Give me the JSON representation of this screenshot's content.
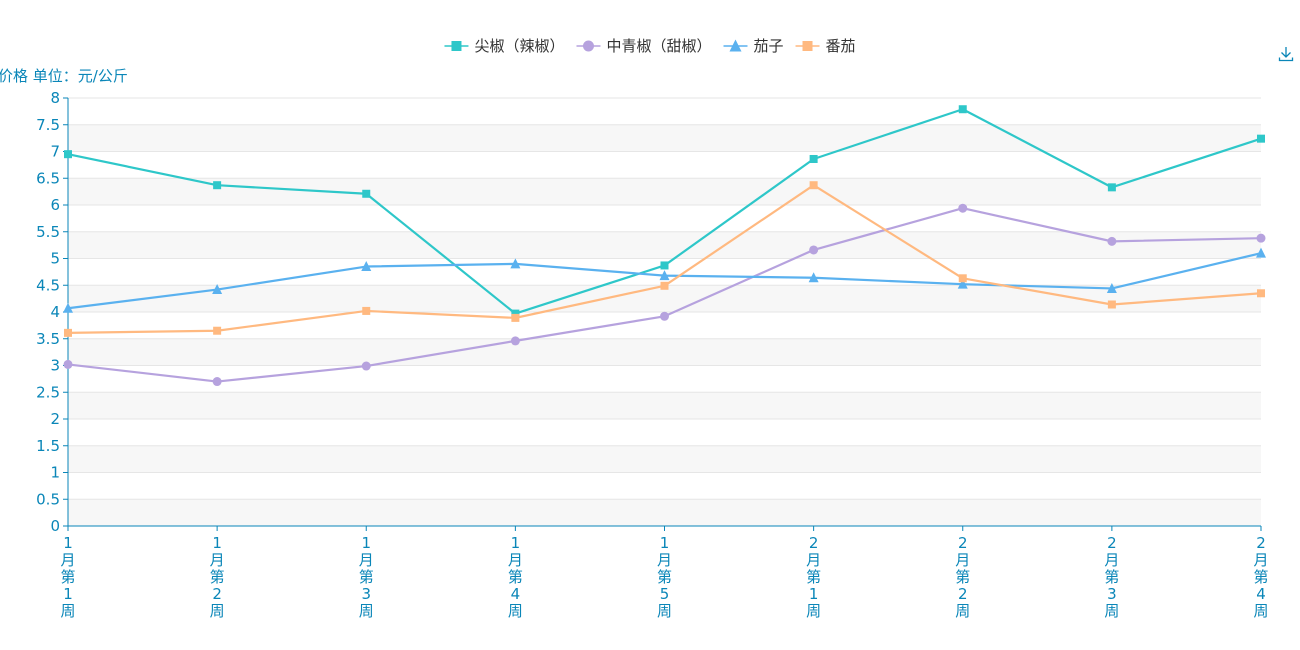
{
  "toolbar": {
    "download_icon": "download-icon"
  },
  "colors": {
    "axis": "#0a86b8",
    "gridline": "#e6e6e6",
    "band": "#f7f7f7",
    "legend_text": "#333333"
  },
  "chart_data": {
    "type": "line",
    "ylabel": "价格 单位：元/公斤",
    "ylim": [
      0,
      8
    ],
    "yticks": [
      "0",
      "0.5",
      "1",
      "1.5",
      "2",
      "2.5",
      "3",
      "3.5",
      "4",
      "4.5",
      "5",
      "5.5",
      "6",
      "6.5",
      "7",
      "7.5",
      "8"
    ],
    "categories": [
      "1月第1周",
      "1月第2周",
      "1月第3周",
      "1月第4周",
      "1月第5周",
      "2月第1周",
      "2月第2周",
      "2月第3周",
      "2月第4周"
    ],
    "legend_position": "top-center",
    "grid": true,
    "series": [
      {
        "name": "尖椒（辣椒）",
        "color": "#2ec7c9",
        "marker": "square",
        "values": [
          6.95,
          6.37,
          6.21,
          3.97,
          4.87,
          6.86,
          7.79,
          6.33,
          7.24
        ]
      },
      {
        "name": "中青椒（甜椒）",
        "color": "#b6a2de",
        "marker": "circle",
        "values": [
          3.02,
          2.7,
          2.99,
          3.46,
          3.92,
          5.16,
          5.94,
          5.32,
          5.38
        ]
      },
      {
        "name": "茄子",
        "color": "#5ab1ef",
        "marker": "triangle",
        "values": [
          4.07,
          4.42,
          4.85,
          4.9,
          4.68,
          4.64,
          4.52,
          4.44,
          5.1
        ]
      },
      {
        "name": "番茄",
        "color": "#ffb980",
        "marker": "square",
        "values": [
          3.61,
          3.65,
          4.02,
          3.89,
          4.49,
          6.37,
          4.63,
          4.14,
          4.35
        ]
      }
    ]
  }
}
